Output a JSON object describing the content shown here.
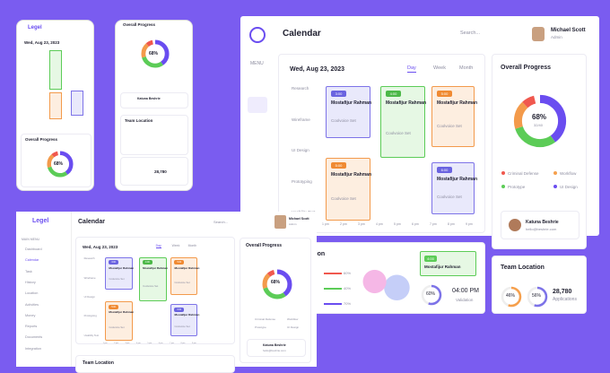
{
  "main": {
    "menu": "MENU",
    "title": "Calendar",
    "search": "Search...",
    "user": {
      "name": "Michael Scott",
      "role": "Admin"
    },
    "calendar": {
      "date": "Wed, Aug 23, 2023",
      "tabs": [
        "Day",
        "Week",
        "Month"
      ],
      "rows": [
        "Research",
        "Wireframe",
        "UI Design",
        "Prototyping",
        "Usability Test"
      ],
      "hours": [
        "1 pm",
        "2 pm",
        "3 pm",
        "4 pm",
        "5 pm",
        "6 pm",
        "7 pm",
        "8 pm",
        "9 pm"
      ],
      "events": [
        {
          "time": "3:00",
          "name": "Mostafijur Rahman",
          "task": "Coolvoice Set"
        },
        {
          "time": "4:00",
          "name": "Mostafijur Rahman",
          "task": "Coolvoice Set"
        },
        {
          "time": "5:00",
          "name": "Mostafijur Rahman",
          "task": "Coolvoice Set"
        },
        {
          "time": "5:00",
          "name": "Mostafijur Rahman",
          "task": "Coolvoice Set"
        },
        {
          "time": "6:00",
          "name": "Mostafijur Rahman",
          "task": "Coolvoice Set"
        }
      ]
    },
    "progress": {
      "title": "Overall Progress",
      "value": "68%",
      "sub": "32/40",
      "legend": [
        "Criminal Defense",
        "Workflow",
        "Prototype",
        "UI Design"
      ],
      "contact": {
        "name": "Katuna Beshrie",
        "email": "hello@beshrie.com"
      }
    },
    "team": {
      "title": "Team Location",
      "rings": [
        "46%",
        "56%"
      ],
      "count": "28,780",
      "count_label": "Applications"
    },
    "location": {
      "title": "Location",
      "bars": [
        "60%",
        "40%",
        "70%"
      ],
      "ring": "60%",
      "time": "04:00 PM",
      "time_label": "Validation",
      "event": {
        "time": "4:00",
        "name": "Mostafijur Rahman"
      }
    }
  },
  "desktop2": {
    "logo": "Legel",
    "title": "Calendar",
    "search": "Search...",
    "section": "MAIN MENU",
    "nav": [
      "Dashboard",
      "Calendar",
      "Task",
      "History",
      "Location",
      "Activities",
      "Money",
      "Reports",
      "Documents",
      "Integration"
    ],
    "team_title": "Team Location"
  },
  "mobile": [
    {
      "logo": "Legel",
      "date": "Wed, Aug 23, 2023",
      "progress_title": "Overall Progress"
    },
    {
      "progress_title": "Overall Progress",
      "team_title": "Team Location",
      "count": "28,780"
    }
  ]
}
